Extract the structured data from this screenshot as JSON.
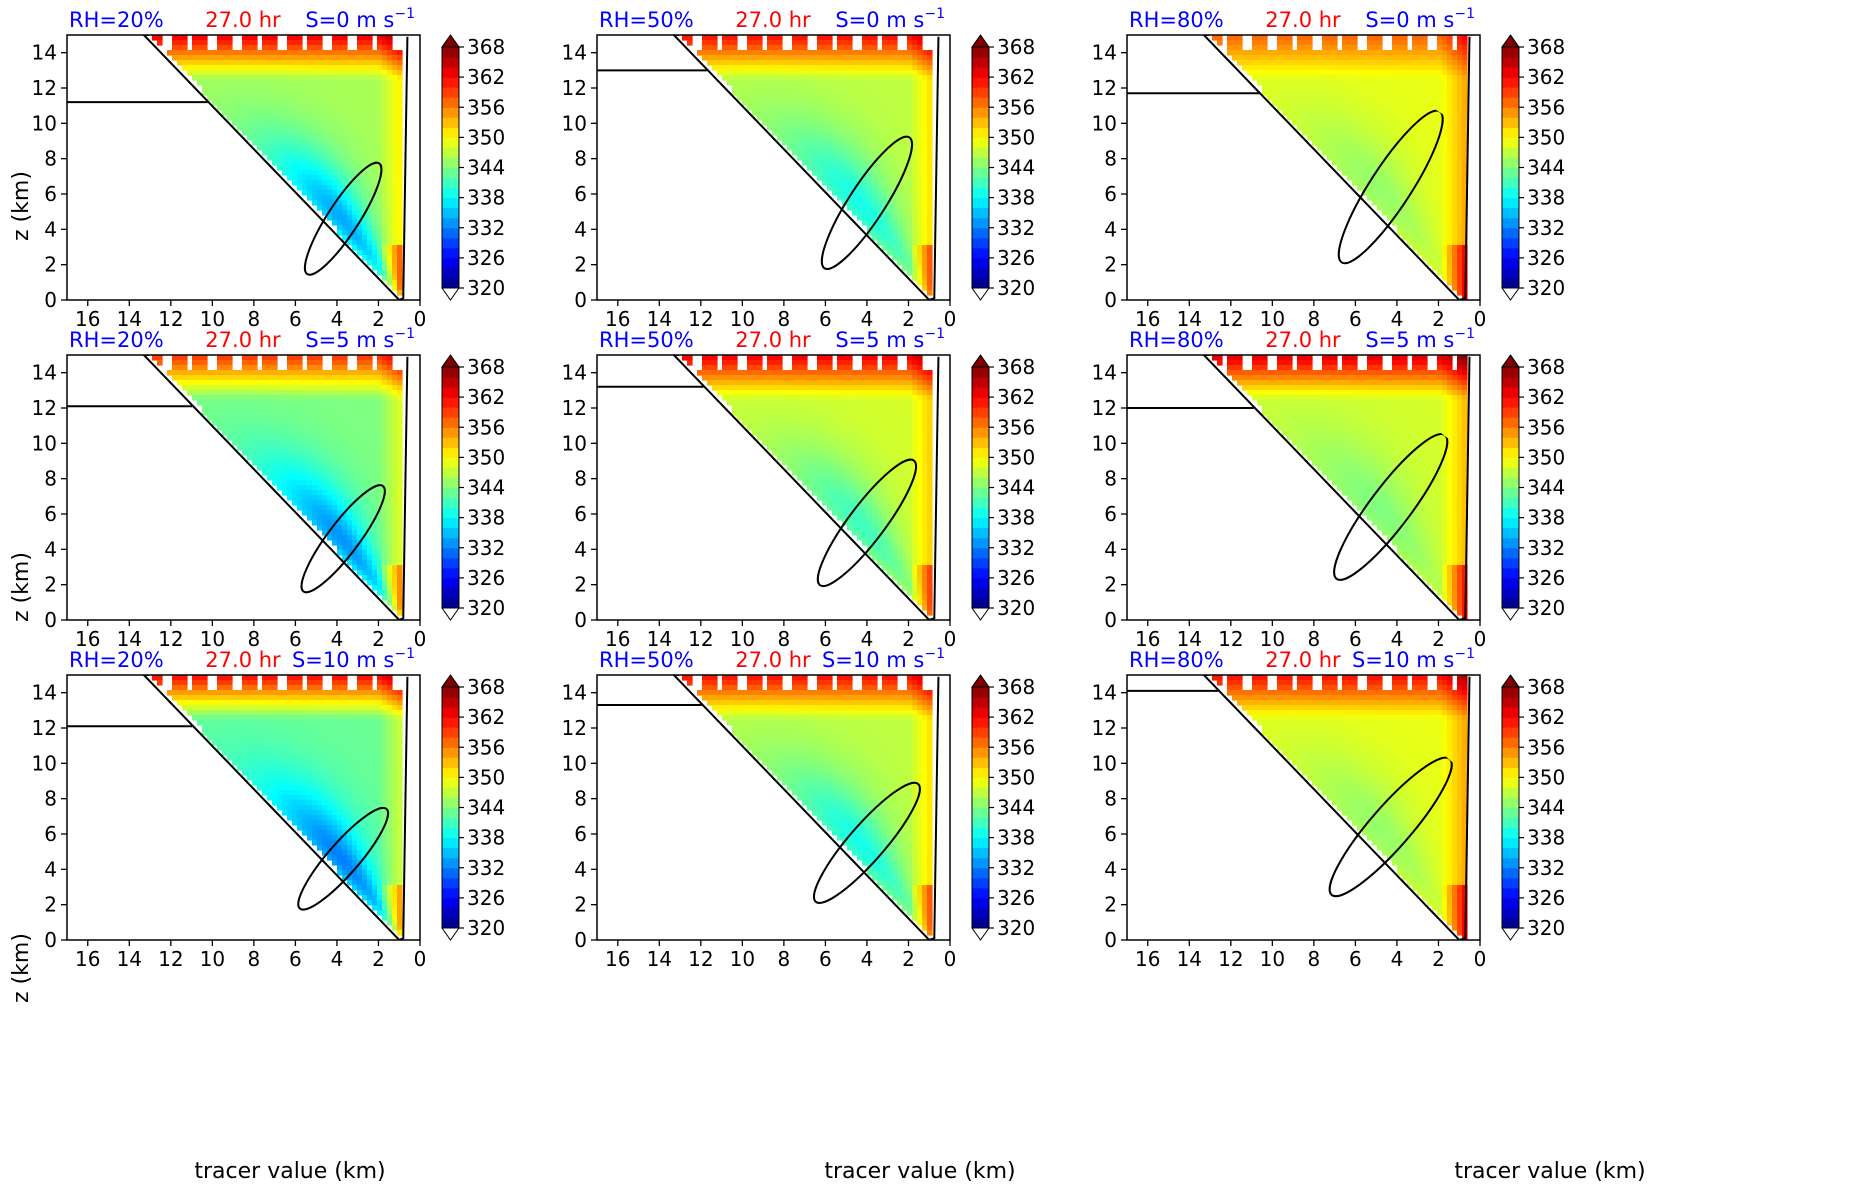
{
  "figure": {
    "panel_titles": {
      "rh_labels": [
        "RH=20%",
        "RH=50%",
        "RH=80%"
      ],
      "time_label": "27.0 hr",
      "shear_labels": [
        "S=0 m s",
        "S=5 m s",
        "S=10 m s"
      ],
      "shear_unit_exponent": "−1"
    },
    "y_axis_label": "z (km)",
    "x_axis_label": "tracer value (km)",
    "colors": {
      "rh_title": "#0000ff",
      "time_title": "#ff0000",
      "shear_title": "#0000ff",
      "contour": "#000000"
    }
  },
  "chart_data": {
    "type": "heatmap",
    "layout": "3x3 grid; columns RH=20%,50%,80%; rows S=0,5,10 m s^-1",
    "x": {
      "label": "tracer value (km)",
      "range": [
        17,
        0
      ],
      "reversed": true,
      "ticks": [
        16,
        14,
        12,
        10,
        8,
        6,
        4,
        2,
        0
      ]
    },
    "y": {
      "label": "z (km)",
      "range": [
        0,
        15
      ],
      "ticks": [
        0,
        2,
        4,
        6,
        8,
        10,
        12,
        14
      ]
    },
    "colorbar": {
      "range": [
        320,
        368
      ],
      "ticks": [
        320,
        326,
        332,
        338,
        344,
        350,
        356,
        362,
        368
      ],
      "extend": "both",
      "colormap": "jet"
    },
    "panels": [
      {
        "rh": 20,
        "shear": 0,
        "time_hr": 27.0,
        "core_value": 334,
        "edge_value": 346,
        "top_value": 362,
        "shelf_height_km": 11.2
      },
      {
        "rh": 50,
        "shear": 0,
        "time_hr": 27.0,
        "core_value": 339,
        "edge_value": 347,
        "top_value": 361,
        "shelf_height_km": 13.0
      },
      {
        "rh": 80,
        "shear": 0,
        "time_hr": 27.0,
        "core_value": 345,
        "edge_value": 349,
        "top_value": 357,
        "shelf_height_km": 11.7
      },
      {
        "rh": 20,
        "shear": 5,
        "time_hr": 27.0,
        "core_value": 333,
        "edge_value": 344,
        "top_value": 359,
        "shelf_height_km": 12.1
      },
      {
        "rh": 50,
        "shear": 5,
        "time_hr": 27.0,
        "core_value": 341,
        "edge_value": 348,
        "top_value": 362,
        "shelf_height_km": 13.2
      },
      {
        "rh": 80,
        "shear": 5,
        "time_hr": 27.0,
        "core_value": 344,
        "edge_value": 348,
        "top_value": 363,
        "shelf_height_km": 12.0
      },
      {
        "rh": 20,
        "shear": 10,
        "time_hr": 27.0,
        "core_value": 332,
        "edge_value": 343,
        "top_value": 361,
        "shelf_height_km": 12.1
      },
      {
        "rh": 50,
        "shear": 10,
        "time_hr": 27.0,
        "core_value": 339,
        "edge_value": 347,
        "top_value": 361,
        "shelf_height_km": 13.3
      },
      {
        "rh": 80,
        "shear": 10,
        "time_hr": 27.0,
        "core_value": 345,
        "edge_value": 349,
        "top_value": 361,
        "shelf_height_km": 14.1
      }
    ]
  }
}
